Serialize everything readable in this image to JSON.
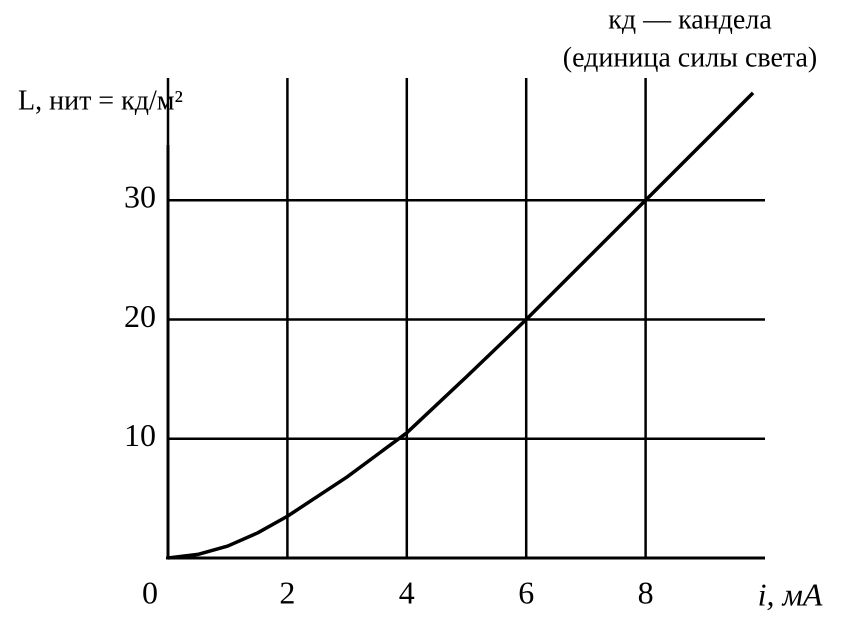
{
  "chart_data": {
    "type": "line",
    "title": "кд — кандела",
    "subtitle": "(единица силы света)",
    "y_label": "L, нит = кд/м²",
    "x_label": "i, мА",
    "x": [
      0,
      0.5,
      1,
      1.5,
      2,
      3,
      4,
      5,
      6,
      7,
      8,
      9,
      9.8
    ],
    "series": [
      {
        "color": "#000000",
        "values": [
          0,
          0.3,
          1,
          2.1,
          3.5,
          6.8,
          10.5,
          15.2,
          20,
          25,
          30,
          35,
          39
        ]
      }
    ],
    "xlim": [
      0,
      10
    ],
    "ylim": [
      0,
      40
    ],
    "xticks": [
      0,
      2,
      4,
      6,
      8
    ],
    "yticks": [
      10,
      20,
      30
    ],
    "grid": true
  }
}
